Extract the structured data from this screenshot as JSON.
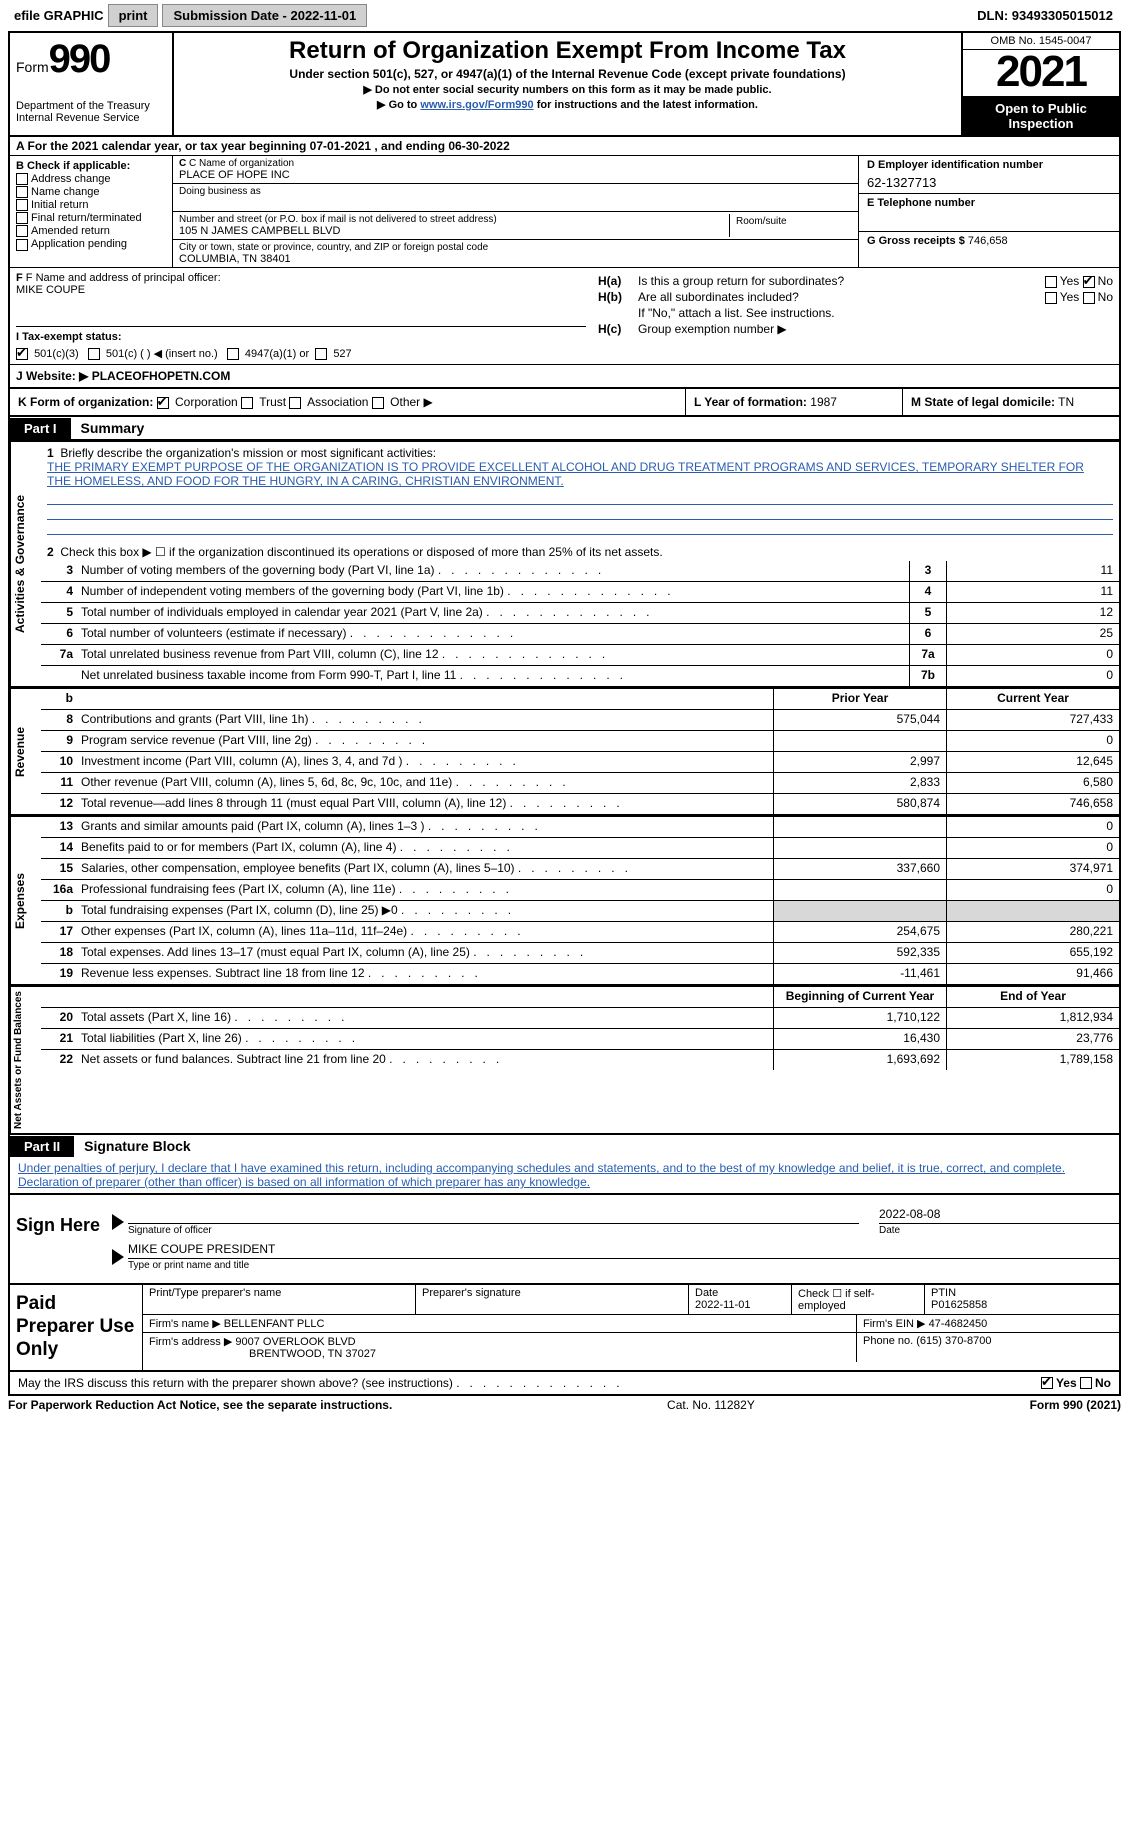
{
  "topbar": {
    "efile_label": "efile GRAPHIC",
    "print_btn": "print",
    "sub_date_label": "Submission Date - 2022-11-01",
    "dln": "DLN: 93493305015012"
  },
  "header": {
    "form_label": "Form",
    "form_num": "990",
    "dept": "Department of the Treasury",
    "irs": "Internal Revenue Service",
    "title": "Return of Organization Exempt From Income Tax",
    "sub1": "Under section 501(c), 527, or 4947(a)(1) of the Internal Revenue Code (except private foundations)",
    "sub2": "▶ Do not enter social security numbers on this form as it may be made public.",
    "sub3_pre": "▶ Go to ",
    "sub3_link": "www.irs.gov/Form990",
    "sub3_post": " for instructions and the latest information.",
    "omb": "OMB No. 1545-0047",
    "year": "2021",
    "open": "Open to Public Inspection"
  },
  "row_a": "A For the 2021 calendar year, or tax year beginning 07-01-2021    , and ending 06-30-2022",
  "col_b": {
    "label": "B Check if applicable:",
    "opts": [
      "Address change",
      "Name change",
      "Initial return",
      "Final return/terminated",
      "Amended return",
      "Application pending"
    ]
  },
  "col_c": {
    "name_lbl": "C Name of organization",
    "name": "PLACE OF HOPE INC",
    "dba_lbl": "Doing business as",
    "addr_lbl": "Number and street (or P.O. box if mail is not delivered to street address)",
    "room_lbl": "Room/suite",
    "addr": "105 N JAMES CAMPBELL BLVD",
    "city_lbl": "City or town, state or province, country, and ZIP or foreign postal code",
    "city": "COLUMBIA, TN  38401"
  },
  "col_d": {
    "ein_lbl": "D Employer identification number",
    "ein": "62-1327713",
    "tel_lbl": "E Telephone number",
    "tel": "",
    "gross_lbl": "G Gross receipts $",
    "gross": "746,658"
  },
  "row_f": {
    "lbl": "F Name and address of principal officer:",
    "name": "MIKE COUPE"
  },
  "row_h": {
    "ha_lbl": "H(a)",
    "ha_txt": "Is this a group return for subordinates?",
    "hb_lbl": "H(b)",
    "hb_txt": "Are all subordinates included?",
    "hb_note": "If \"No,\" attach a list. See instructions.",
    "hc_lbl": "H(c)",
    "hc_txt": "Group exemption number ▶",
    "yes": "Yes",
    "no": "No"
  },
  "row_i": {
    "lbl": "I   Tax-exempt status:",
    "o1": "501(c)(3)",
    "o2": "501(c) (  ) ◀ (insert no.)",
    "o3": "4947(a)(1) or",
    "o4": "527"
  },
  "row_j": {
    "lbl": "J   Website: ▶",
    "val": "PLACEOFHOPETN.COM"
  },
  "row_k": {
    "k_lbl": "K Form of organization:",
    "corp": "Corporation",
    "trust": "Trust",
    "assoc": "Association",
    "other": "Other ▶",
    "l_lbl": "L Year of formation:",
    "l_val": "1987",
    "m_lbl": "M State of legal domicile:",
    "m_val": "TN"
  },
  "part1": {
    "tab": "Part I",
    "title": "Summary",
    "vtab1": "Activities & Governance",
    "vtab2": "Revenue",
    "vtab3": "Expenses",
    "vtab4": "Net Assets or Fund Balances",
    "l1_lbl": "Briefly describe the organization's mission or most significant activities:",
    "l1_txt": "THE PRIMARY EXEMPT PURPOSE OF THE ORGANIZATION IS TO PROVIDE EXCELLENT ALCOHOL AND DRUG TREATMENT PROGRAMS AND SERVICES, TEMPORARY SHELTER FOR THE HOMELESS, AND FOOD FOR THE HUNGRY, IN A CARING, CHRISTIAN ENVIRONMENT.",
    "l2": "Check this box ▶ ☐ if the organization discontinued its operations or disposed of more than 25% of its net assets.",
    "rows_g": [
      {
        "n": "3",
        "t": "Number of voting members of the governing body (Part VI, line 1a)",
        "box": "3",
        "v": "11"
      },
      {
        "n": "4",
        "t": "Number of independent voting members of the governing body (Part VI, line 1b)",
        "box": "4",
        "v": "11"
      },
      {
        "n": "5",
        "t": "Total number of individuals employed in calendar year 2021 (Part V, line 2a)",
        "box": "5",
        "v": "12"
      },
      {
        "n": "6",
        "t": "Total number of volunteers (estimate if necessary)",
        "box": "6",
        "v": "25"
      },
      {
        "n": "7a",
        "t": "Total unrelated business revenue from Part VIII, column (C), line 12",
        "box": "7a",
        "v": "0"
      },
      {
        "n": "",
        "t": "Net unrelated business taxable income from Form 990-T, Part I, line 11",
        "box": "7b",
        "v": "0"
      }
    ],
    "hdr_prior": "Prior Year",
    "hdr_curr": "Current Year",
    "rows_r": [
      {
        "n": "8",
        "t": "Contributions and grants (Part VIII, line 1h)",
        "p": "575,044",
        "c": "727,433"
      },
      {
        "n": "9",
        "t": "Program service revenue (Part VIII, line 2g)",
        "p": "",
        "c": "0"
      },
      {
        "n": "10",
        "t": "Investment income (Part VIII, column (A), lines 3, 4, and 7d )",
        "p": "2,997",
        "c": "12,645"
      },
      {
        "n": "11",
        "t": "Other revenue (Part VIII, column (A), lines 5, 6d, 8c, 9c, 10c, and 11e)",
        "p": "2,833",
        "c": "6,580"
      },
      {
        "n": "12",
        "t": "Total revenue—add lines 8 through 11 (must equal Part VIII, column (A), line 12)",
        "p": "580,874",
        "c": "746,658"
      }
    ],
    "rows_e": [
      {
        "n": "13",
        "t": "Grants and similar amounts paid (Part IX, column (A), lines 1–3 )",
        "p": "",
        "c": "0"
      },
      {
        "n": "14",
        "t": "Benefits paid to or for members (Part IX, column (A), line 4)",
        "p": "",
        "c": "0"
      },
      {
        "n": "15",
        "t": "Salaries, other compensation, employee benefits (Part IX, column (A), lines 5–10)",
        "p": "337,660",
        "c": "374,971"
      },
      {
        "n": "16a",
        "t": "Professional fundraising fees (Part IX, column (A), line 11e)",
        "p": "",
        "c": "0"
      },
      {
        "n": "b",
        "t": "Total fundraising expenses (Part IX, column (D), line 25) ▶0",
        "p": "GRAY",
        "c": "GRAY"
      },
      {
        "n": "17",
        "t": "Other expenses (Part IX, column (A), lines 11a–11d, 11f–24e)",
        "p": "254,675",
        "c": "280,221"
      },
      {
        "n": "18",
        "t": "Total expenses. Add lines 13–17 (must equal Part IX, column (A), line 25)",
        "p": "592,335",
        "c": "655,192"
      },
      {
        "n": "19",
        "t": "Revenue less expenses. Subtract line 18 from line 12",
        "p": "-11,461",
        "c": "91,466"
      }
    ],
    "hdr_beg": "Beginning of Current Year",
    "hdr_end": "End of Year",
    "rows_n": [
      {
        "n": "20",
        "t": "Total assets (Part X, line 16)",
        "p": "1,710,122",
        "c": "1,812,934"
      },
      {
        "n": "21",
        "t": "Total liabilities (Part X, line 26)",
        "p": "16,430",
        "c": "23,776"
      },
      {
        "n": "22",
        "t": "Net assets or fund balances. Subtract line 21 from line 20",
        "p": "1,693,692",
        "c": "1,789,158"
      }
    ]
  },
  "part2": {
    "tab": "Part II",
    "title": "Signature Block",
    "decl": "Under penalties of perjury, I declare that I have examined this return, including accompanying schedules and statements, and to the best of my knowledge and belief, it is true, correct, and complete. Declaration of preparer (other than officer) is based on all information of which preparer has any knowledge.",
    "sign_here": "Sign Here",
    "sig_date": "2022-08-08",
    "sig_of": "Signature of officer",
    "date_lbl": "Date",
    "officer_name": "MIKE COUPE  PRESIDENT",
    "type_name": "Type or print name and title",
    "paid": "Paid Preparer Use Only",
    "p_name_lbl": "Print/Type preparer's name",
    "p_sig_lbl": "Preparer's signature",
    "p_date_lbl": "Date",
    "p_date": "2022-11-01",
    "p_check": "Check ☐ if self-employed",
    "ptin_lbl": "PTIN",
    "ptin": "P01625858",
    "firm_name_lbl": "Firm's name    ▶",
    "firm_name": "BELLENFANT PLLC",
    "firm_ein_lbl": "Firm's EIN ▶",
    "firm_ein": "47-4682450",
    "firm_addr_lbl": "Firm's address ▶",
    "firm_addr1": "9007 OVERLOOK BLVD",
    "firm_addr2": "BRENTWOOD, TN  37027",
    "phone_lbl": "Phone no.",
    "phone": "(615) 370-8700"
  },
  "footer": {
    "discuss": "May the IRS discuss this return with the preparer shown above? (see instructions)",
    "yes": "Yes",
    "no": "No",
    "paperwork": "For Paperwork Reduction Act Notice, see the separate instructions.",
    "cat": "Cat. No. 11282Y",
    "form": "Form 990 (2021)"
  }
}
